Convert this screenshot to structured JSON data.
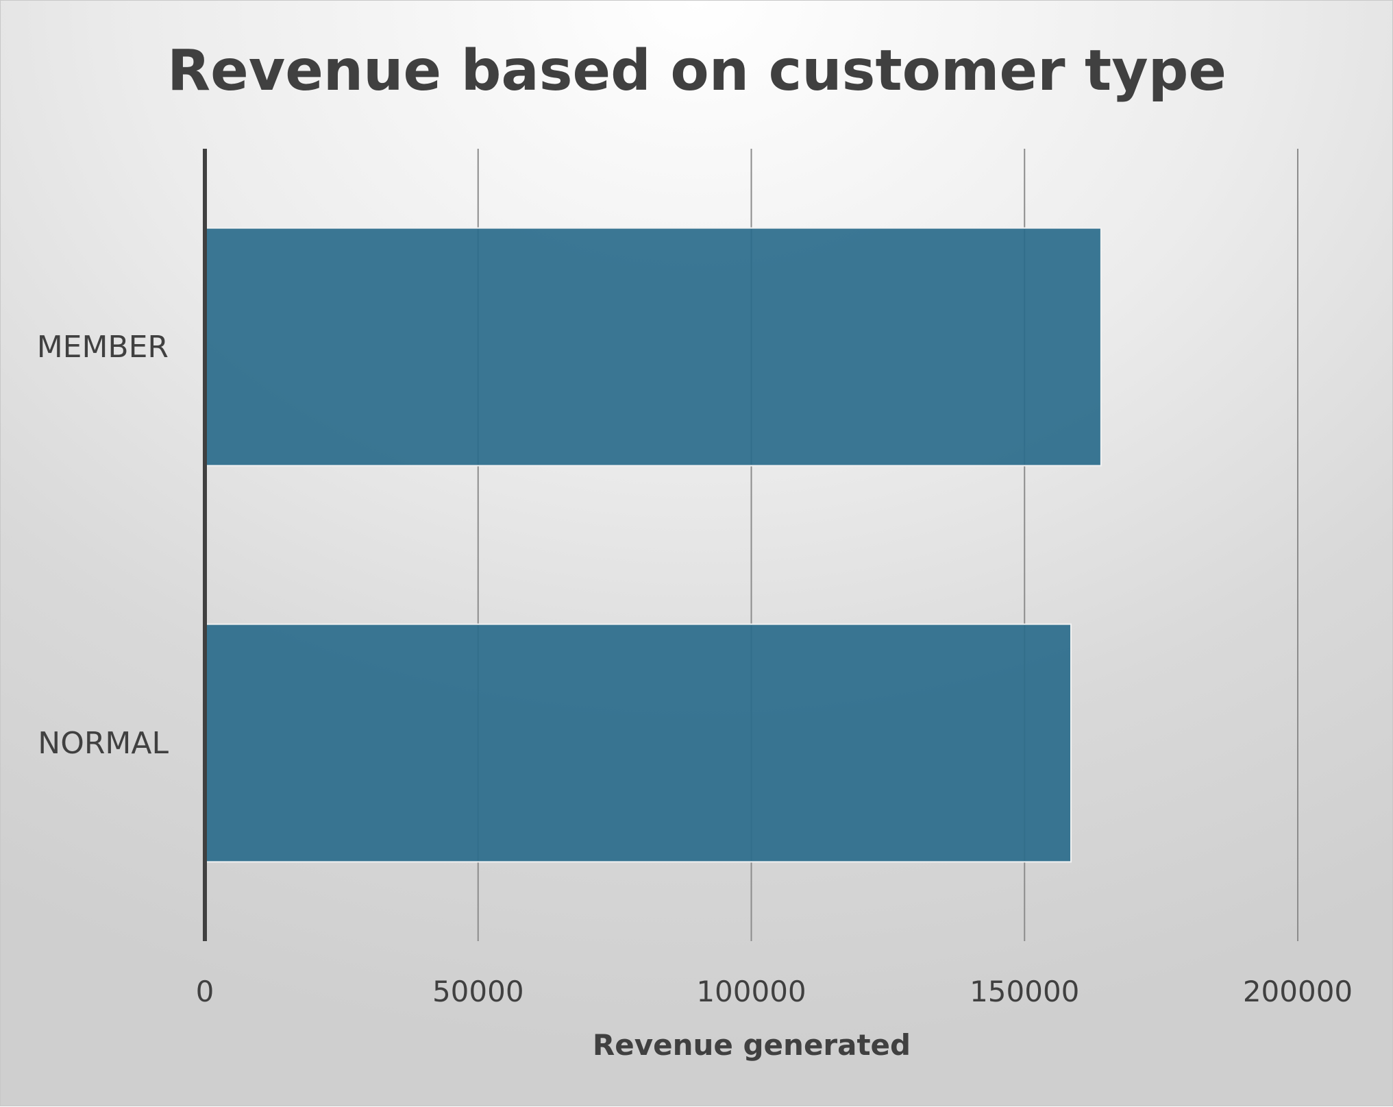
{
  "chart_data": {
    "type": "bar",
    "orientation": "horizontal",
    "title": "Revenue based on customer type",
    "xlabel": "Revenue generated",
    "ylabel": "",
    "categories": [
      "MEMBER",
      "NORMAL"
    ],
    "values": [
      164000,
      158500
    ],
    "xlim": [
      0,
      200000
    ],
    "xticks": [
      0,
      50000,
      100000,
      150000,
      200000
    ],
    "tick_labels": [
      "0",
      "50000",
      "100000",
      "150000",
      "200000"
    ],
    "grid": "vertical",
    "legend": "none",
    "bar_color": "#2a6b8b"
  }
}
